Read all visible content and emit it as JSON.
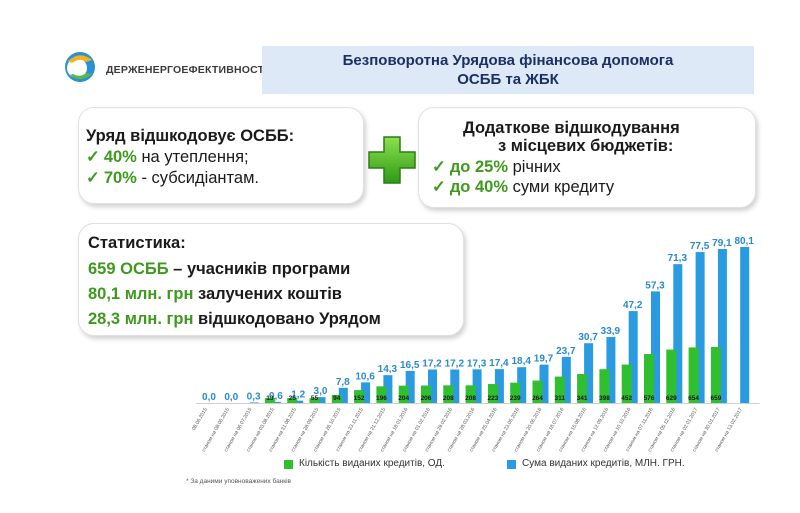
{
  "header": {
    "logo_text": "ДЕРЖЕНЕРГОЕФЕКТИВНОСТІ",
    "title_line1": "Безповоротна Урядова фінансова допомога",
    "title_line2": "ОСББ та ЖБК"
  },
  "card_gov": {
    "heading": "Уряд відшкодовує ОСББ:",
    "items": [
      {
        "check": "✓",
        "value": "40%",
        "text": " на утеплення;"
      },
      {
        "check": "✓",
        "value": "70%",
        "text": " - субсидіантам."
      }
    ]
  },
  "card_local": {
    "heading_line1": "Додаткове відшкодування",
    "heading_line2": "з місцевих бюджетів:",
    "items": [
      {
        "check": "✓",
        "value": "до 25%",
        "text": " річних"
      },
      {
        "check": "✓",
        "value": "до 40%",
        "text": " суми кредиту"
      }
    ]
  },
  "stats": {
    "heading": "Статистика:",
    "rows": [
      {
        "value": "659 ОСББ",
        "text": " – учасників програми"
      },
      {
        "value": "80,1 млн. грн",
        "text": " залучених коштів"
      },
      {
        "value": "28,3 млн. грн",
        "text": " відшкодовано Урядом"
      }
    ]
  },
  "colors": {
    "green": "#3e9a1e",
    "bar_green": "#2fbf2f",
    "bar_blue": "#2a9be0",
    "title": "#1c2f62"
  },
  "chart_data": {
    "type": "bar",
    "categories": [
      "08.06.2015",
      "станом на 08.06.2015",
      "станом на 06.07.2015",
      "станом на 03.08.2015",
      "станом на 31.08.2015",
      "станом на 28.09.2015",
      "станом на 26.10.2015",
      "станом на 23.11.2015",
      "станом на 21.12.2015",
      "станом на 18.01.2016",
      "станом на 01.02.2016",
      "станом на 29.02.2016",
      "станом на 28.03.2016",
      "станом на 25.04.2016",
      "станом на 23.05.2016",
      "станом на 20.06.2016",
      "станом на 18.07.2016",
      "станом на 15.08.2016",
      "станом на 12.09.2016",
      "станом на 10.10.2016",
      "станом на 07.11.2016",
      "станом на 05.12.2016",
      "станом на 02.01.2017",
      "станом на 30.01.2017",
      "станом на 13.02.2017"
    ],
    "series": [
      {
        "name": "Кількість виданих кредитів, ОД.",
        "values": [
          null,
          null,
          null,
          13,
          25,
          55,
          94,
          152,
          196,
          204,
          206,
          208,
          208,
          223,
          239,
          264,
          311,
          341,
          398,
          452,
          576,
          629,
          654,
          659,
          null
        ]
      },
      {
        "name": "Сума виданих кредитів, МЛН. ГРН.",
        "values": [
          0.0,
          0.0,
          0.3,
          0.6,
          1.2,
          3.0,
          7.8,
          10.6,
          14.3,
          16.5,
          17.2,
          17.2,
          17.3,
          17.4,
          18.4,
          19.7,
          23.7,
          30.7,
          33.9,
          47.2,
          57.3,
          71.3,
          77.5,
          79.1,
          80.1
        ]
      }
    ],
    "footnote": "* За даними уповноважених банків"
  }
}
